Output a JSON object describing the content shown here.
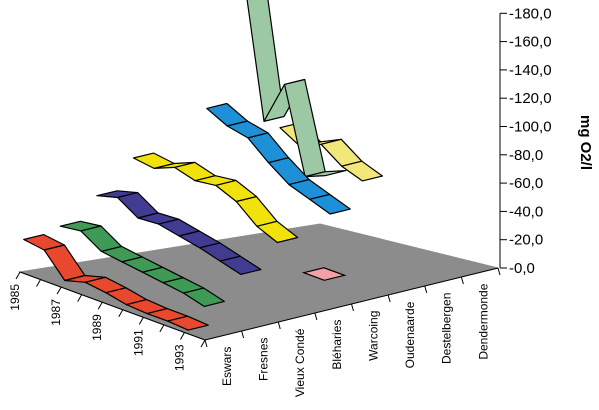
{
  "chart_data": {
    "type": "3d-ribbon",
    "title": "",
    "zlabel": "mg O2/l",
    "zlim": [
      0,
      180
    ],
    "z_ticks": [
      "0,0",
      "20,0",
      "40,0",
      "60,0",
      "80,0",
      "100,0",
      "120,0",
      "140,0",
      "160,0",
      "180,0"
    ],
    "year_ticks": [
      "1985",
      "1987",
      "1989",
      "1991",
      "1993"
    ],
    "stations": [
      "Eswars",
      "Fresnes",
      "Vieux Condé",
      "Bléharies",
      "Warcoing",
      "Oudenaarde",
      "Destelbergen",
      "Dendermonde"
    ],
    "series": [
      {
        "name": "Eswars",
        "color": "#e8492e",
        "values": [
          22,
          20,
          4,
          8,
          6,
          3,
          2,
          2,
          1
        ]
      },
      {
        "name": "Fresnes",
        "color": "#3e9a55",
        "values": [
          25,
          27,
          18,
          16,
          14,
          12,
          10,
          6
        ]
      },
      {
        "name": "Vieux Condé",
        "color": "#413b92",
        "values": [
          40,
          44,
          35,
          36,
          33,
          30,
          26,
          22
        ]
      },
      {
        "name": "Bléharies",
        "color": "#f2e20c",
        "values": [
          60,
          58,
          64,
          60,
          62,
          56,
          44,
          38
        ]
      },
      {
        "name": "Warcoing",
        "color": "#f2a1a6",
        "values": [
          null,
          null,
          null,
          null,
          null,
          null,
          null,
          8
        ]
      },
      {
        "name": "Oudenaarde",
        "color": "#1e90d8",
        "values": [
          82,
          75,
          72,
          60,
          50,
          45,
          40
        ]
      },
      {
        "name": "Destelbergen",
        "color": "#9cc9a3",
        "values": [
          170,
          72,
          103,
          44,
          50
        ]
      },
      {
        "name": "Dendermonde",
        "color": "#f2e87a",
        "values": [
          56,
          48,
          55,
          45,
          40
        ]
      }
    ]
  }
}
